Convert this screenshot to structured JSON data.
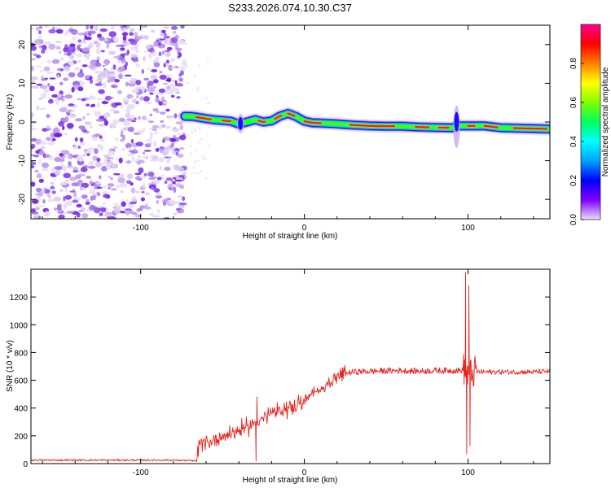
{
  "figure": {
    "title": "S233.2026.074.10.30.C37"
  },
  "chart_data": [
    {
      "type": "heatmap",
      "name": "spectrogram",
      "xlabel": "Height of straight line (km)",
      "ylabel": "Frequency (Hz)",
      "xlim": [
        -167,
        150
      ],
      "ylim": [
        -25,
        25
      ],
      "x_ticks": [
        -100,
        0,
        100
      ],
      "x_tick_labels": [
        "-100",
        "0",
        "100"
      ],
      "y_ticks": [
        -20,
        -10,
        0,
        10,
        20
      ],
      "y_tick_labels": [
        "-20",
        "-10",
        "0",
        "10",
        "20"
      ],
      "colorbar": {
        "label": "Normalized spectral amplitude",
        "range": [
          0,
          1
        ],
        "ticks": [
          0.0,
          0.2,
          0.4,
          0.6,
          0.8
        ],
        "tick_labels": [
          "0.0",
          "0.2",
          "0.4",
          "0.6",
          "0.8"
        ],
        "colors": [
          "#e8e0f5",
          "#8000ff",
          "#0000ff",
          "#00a0ff",
          "#00ffff",
          "#00ff60",
          "#80ff00",
          "#ffff00",
          "#ff8000",
          "#ff0000",
          "#ff0090"
        ]
      },
      "noise_region_x": [
        -167,
        -73
      ],
      "signal_onset_x": -73,
      "ridge": {
        "x": [
          -73,
          -68,
          -62,
          -56,
          -50,
          -45,
          -40,
          -35,
          -30,
          -25,
          -20,
          -15,
          -10,
          -5,
          0,
          5,
          10,
          20,
          30,
          40,
          50,
          60,
          70,
          80,
          90,
          95,
          100,
          110,
          120,
          130,
          140,
          150
        ],
        "freq_hz": [
          1.5,
          1.4,
          1.0,
          0.6,
          0.4,
          0.2,
          -0.5,
          0.0,
          0.6,
          0.0,
          0.3,
          1.5,
          2.2,
          1.4,
          0.2,
          -0.2,
          -0.3,
          -0.5,
          -0.8,
          -1.0,
          -1.1,
          -1.1,
          -1.3,
          -1.4,
          -1.5,
          -1.0,
          -1.0,
          -1.0,
          -1.5,
          -1.6,
          -1.7,
          -1.8
        ]
      },
      "vertical_streaks_x": [
        -39,
        93
      ]
    },
    {
      "type": "line",
      "name": "snr",
      "xlabel": "Height of straight line (km)",
      "ylabel": "SNR (10 * v/v)",
      "xlim": [
        -167,
        150
      ],
      "ylim": [
        0,
        1400
      ],
      "x_ticks": [
        -100,
        0,
        100
      ],
      "x_tick_labels": [
        "-100",
        "0",
        "100"
      ],
      "y_ticks": [
        0,
        200,
        400,
        600,
        800,
        1000,
        1200
      ],
      "y_tick_labels": [
        "0",
        "200",
        "400",
        "600",
        "800",
        "1000",
        "1200"
      ],
      "series": [
        {
          "name": "SNR",
          "color": "#e8221e",
          "x": [
            -167,
            -140,
            -110,
            -80,
            -66,
            -63,
            -60,
            -55,
            -50,
            -45,
            -40,
            -35,
            -30,
            -25,
            -20,
            -15,
            -10,
            -5,
            0,
            5,
            10,
            15,
            20,
            25,
            30,
            40,
            50,
            60,
            70,
            80,
            90,
            95,
            98,
            99,
            100,
            101,
            102,
            103,
            105,
            110,
            120,
            130,
            140,
            150
          ],
          "y": [
            25,
            25,
            25,
            25,
            20,
            170,
            150,
            170,
            200,
            220,
            240,
            260,
            300,
            330,
            360,
            380,
            400,
            420,
            450,
            500,
            540,
            580,
            620,
            650,
            660,
            665,
            668,
            670,
            665,
            670,
            670,
            670,
            680,
            640,
            660,
            640,
            650,
            655,
            660,
            660,
            660,
            660,
            660,
            665
          ]
        }
      ],
      "spikes": [
        {
          "x": 98.5,
          "y": 1380
        },
        {
          "x": 99.2,
          "y": 70
        },
        {
          "x": 100.5,
          "y": 1280
        },
        {
          "x": 101.2,
          "y": 130
        },
        {
          "x": -29,
          "y": 480
        },
        {
          "x": -29.5,
          "y": 20
        }
      ]
    }
  ]
}
